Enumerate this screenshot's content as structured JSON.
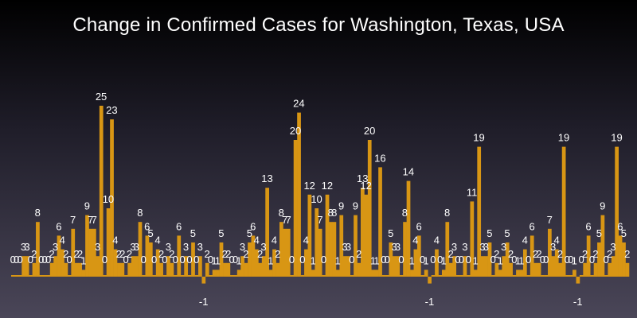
{
  "chart_data": {
    "type": "bar",
    "title": "Change in Confirmed Cases for Washington, Texas, USA",
    "xlabel": "",
    "ylabel": "",
    "ylim": [
      -1,
      30
    ],
    "bar_color": "#d89614",
    "label_color": "#ffffff",
    "values": [
      0,
      0,
      0,
      3,
      3,
      0,
      2,
      8,
      0,
      0,
      0,
      2,
      3,
      6,
      4,
      2,
      0,
      7,
      2,
      2,
      1,
      9,
      7,
      7,
      3,
      25,
      0,
      10,
      23,
      4,
      2,
      2,
      0,
      2,
      3,
      3,
      8,
      0,
      6,
      5,
      0,
      4,
      2,
      0,
      3,
      2,
      0,
      6,
      0,
      3,
      0,
      5,
      0,
      3,
      -1,
      2,
      0,
      1,
      1,
      5,
      2,
      2,
      0,
      0,
      1,
      3,
      2,
      5,
      6,
      4,
      2,
      3,
      13,
      1,
      4,
      2,
      8,
      7,
      7,
      0,
      20,
      24,
      0,
      4,
      12,
      1,
      10,
      7,
      0,
      12,
      8,
      8,
      1,
      9,
      3,
      3,
      0,
      9,
      2,
      13,
      12,
      20,
      1,
      1,
      16,
      0,
      0,
      5,
      3,
      3,
      0,
      8,
      14,
      1,
      4,
      6,
      0,
      1,
      -1,
      0,
      4,
      0,
      1,
      8,
      2,
      3,
      0,
      0,
      3,
      0,
      11,
      1,
      19,
      3,
      3,
      5,
      0,
      2,
      1,
      3,
      5,
      2,
      0,
      1,
      1,
      4,
      0,
      6,
      2,
      2,
      0,
      0,
      7,
      3,
      4,
      2,
      19,
      0,
      0,
      1,
      -1,
      0,
      2,
      6,
      0,
      2,
      5,
      9,
      0,
      2,
      3,
      19,
      6,
      5,
      2
    ]
  }
}
